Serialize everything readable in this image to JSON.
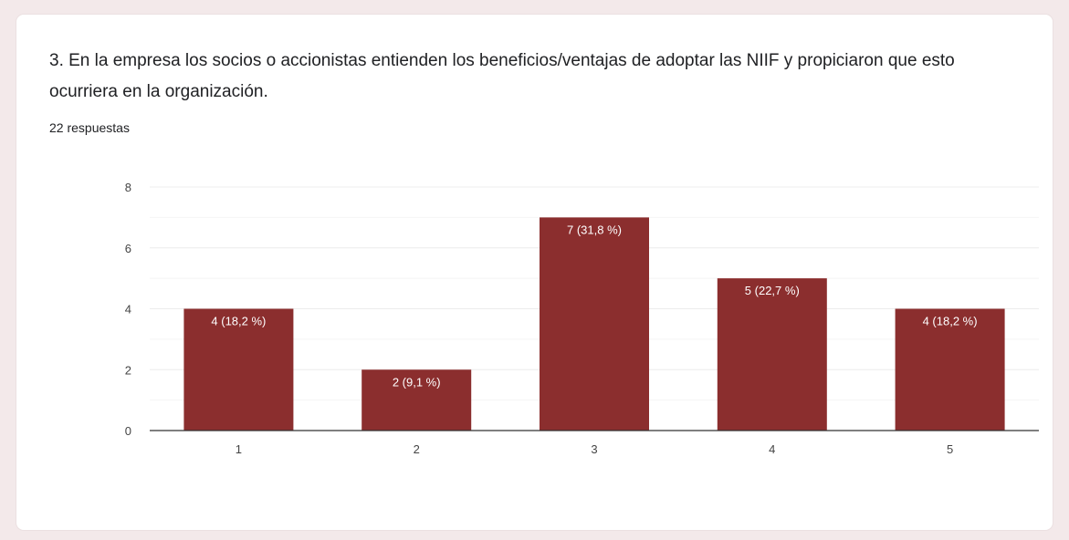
{
  "question": {
    "title": "3. En la empresa los socios o accionistas entienden los beneficios/ventajas de adoptar las NIIF y propiciaron que esto ocurriera en la organización.",
    "responses": "22 respuestas"
  },
  "colors": {
    "bar": "#8b2e2e",
    "grid": "#ececec",
    "axis": "#333333",
    "label": "#ffffff",
    "tick": "#444444"
  },
  "chart_data": {
    "type": "bar",
    "categories": [
      "1",
      "2",
      "3",
      "4",
      "5"
    ],
    "values": [
      4,
      2,
      7,
      5,
      4
    ],
    "data_labels": [
      "4 (18,2 %)",
      "2 (9,1 %)",
      "7 (31,8 %)",
      "5 (22,7 %)",
      "4 (18,2 %)"
    ],
    "yticks": [
      "0",
      "2",
      "4",
      "6",
      "8"
    ],
    "ylim": [
      0,
      8
    ],
    "grid": true,
    "legend": false
  }
}
